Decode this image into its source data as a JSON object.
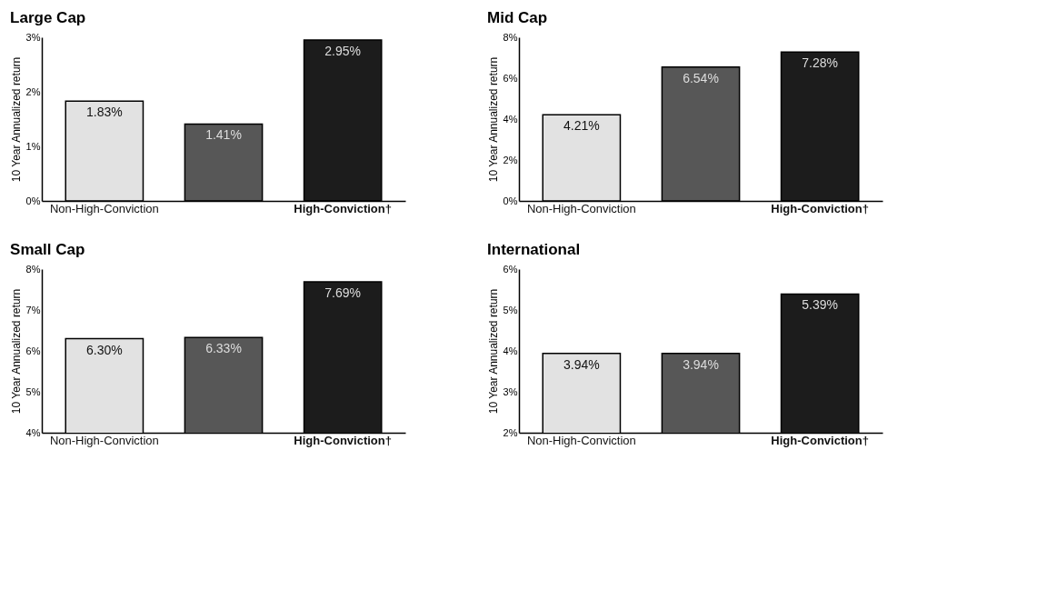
{
  "chart_data": [
    {
      "type": "bar",
      "title": "Large Cap",
      "ylabel": "10 Year Annualized return",
      "categories": [
        "Non-High-Conviction",
        null,
        "High-Conviction†"
      ],
      "values": [
        1.83,
        1.41,
        2.95
      ],
      "value_labels": [
        "1.83%",
        "1.41%",
        "2.95%"
      ],
      "colors": [
        "#e2e2e2",
        "#575757",
        "#1c1c1c"
      ],
      "ylim": [
        0,
        3
      ],
      "yticks": [
        {
          "value": 0,
          "label": "0%"
        },
        {
          "value": 1,
          "label": "1%"
        },
        {
          "value": 2,
          "label": "2%"
        },
        {
          "value": 3,
          "label": "3%"
        }
      ]
    },
    {
      "type": "bar",
      "title": "Mid Cap",
      "ylabel": "10 Year Annualized return",
      "categories": [
        "Non-High-Conviction",
        null,
        "High-Conviction†"
      ],
      "values": [
        4.21,
        6.54,
        7.28
      ],
      "value_labels": [
        "4.21%",
        "6.54%",
        "7.28%"
      ],
      "colors": [
        "#e2e2e2",
        "#575757",
        "#1c1c1c"
      ],
      "ylim": [
        0,
        8
      ],
      "yticks": [
        {
          "value": 0,
          "label": "0%"
        },
        {
          "value": 2,
          "label": "2%"
        },
        {
          "value": 4,
          "label": "4%"
        },
        {
          "value": 6,
          "label": "6%"
        },
        {
          "value": 8,
          "label": "8%"
        }
      ]
    },
    {
      "type": "bar",
      "title": "Small Cap",
      "ylabel": "10 Year Annualized return",
      "categories": [
        "Non-High-Conviction",
        null,
        "High-Conviction†"
      ],
      "values": [
        6.3,
        6.33,
        7.69
      ],
      "value_labels": [
        "6.30%",
        "6.33%",
        "7.69%"
      ],
      "colors": [
        "#e2e2e2",
        "#575757",
        "#1c1c1c"
      ],
      "ylim": [
        4,
        8
      ],
      "yticks": [
        {
          "value": 4,
          "label": "4%"
        },
        {
          "value": 5,
          "label": "5%"
        },
        {
          "value": 6,
          "label": "6%"
        },
        {
          "value": 7,
          "label": "7%"
        },
        {
          "value": 8,
          "label": "8%"
        }
      ]
    },
    {
      "type": "bar",
      "title": "International",
      "ylabel": "10 Year Annualized return",
      "categories": [
        "Non-High-Conviction",
        null,
        "High-Conviction†"
      ],
      "values": [
        3.94,
        3.94,
        5.39
      ],
      "value_labels": [
        "3.94%",
        "3.94%",
        "5.39%"
      ],
      "colors": [
        "#e2e2e2",
        "#575757",
        "#1c1c1c"
      ],
      "ylim": [
        2,
        6
      ],
      "yticks": [
        {
          "value": 2,
          "label": "2%"
        },
        {
          "value": 3,
          "label": "3%"
        },
        {
          "value": 4,
          "label": "4%"
        },
        {
          "value": 5,
          "label": "5%"
        },
        {
          "value": 6,
          "label": "6%"
        }
      ]
    }
  ]
}
